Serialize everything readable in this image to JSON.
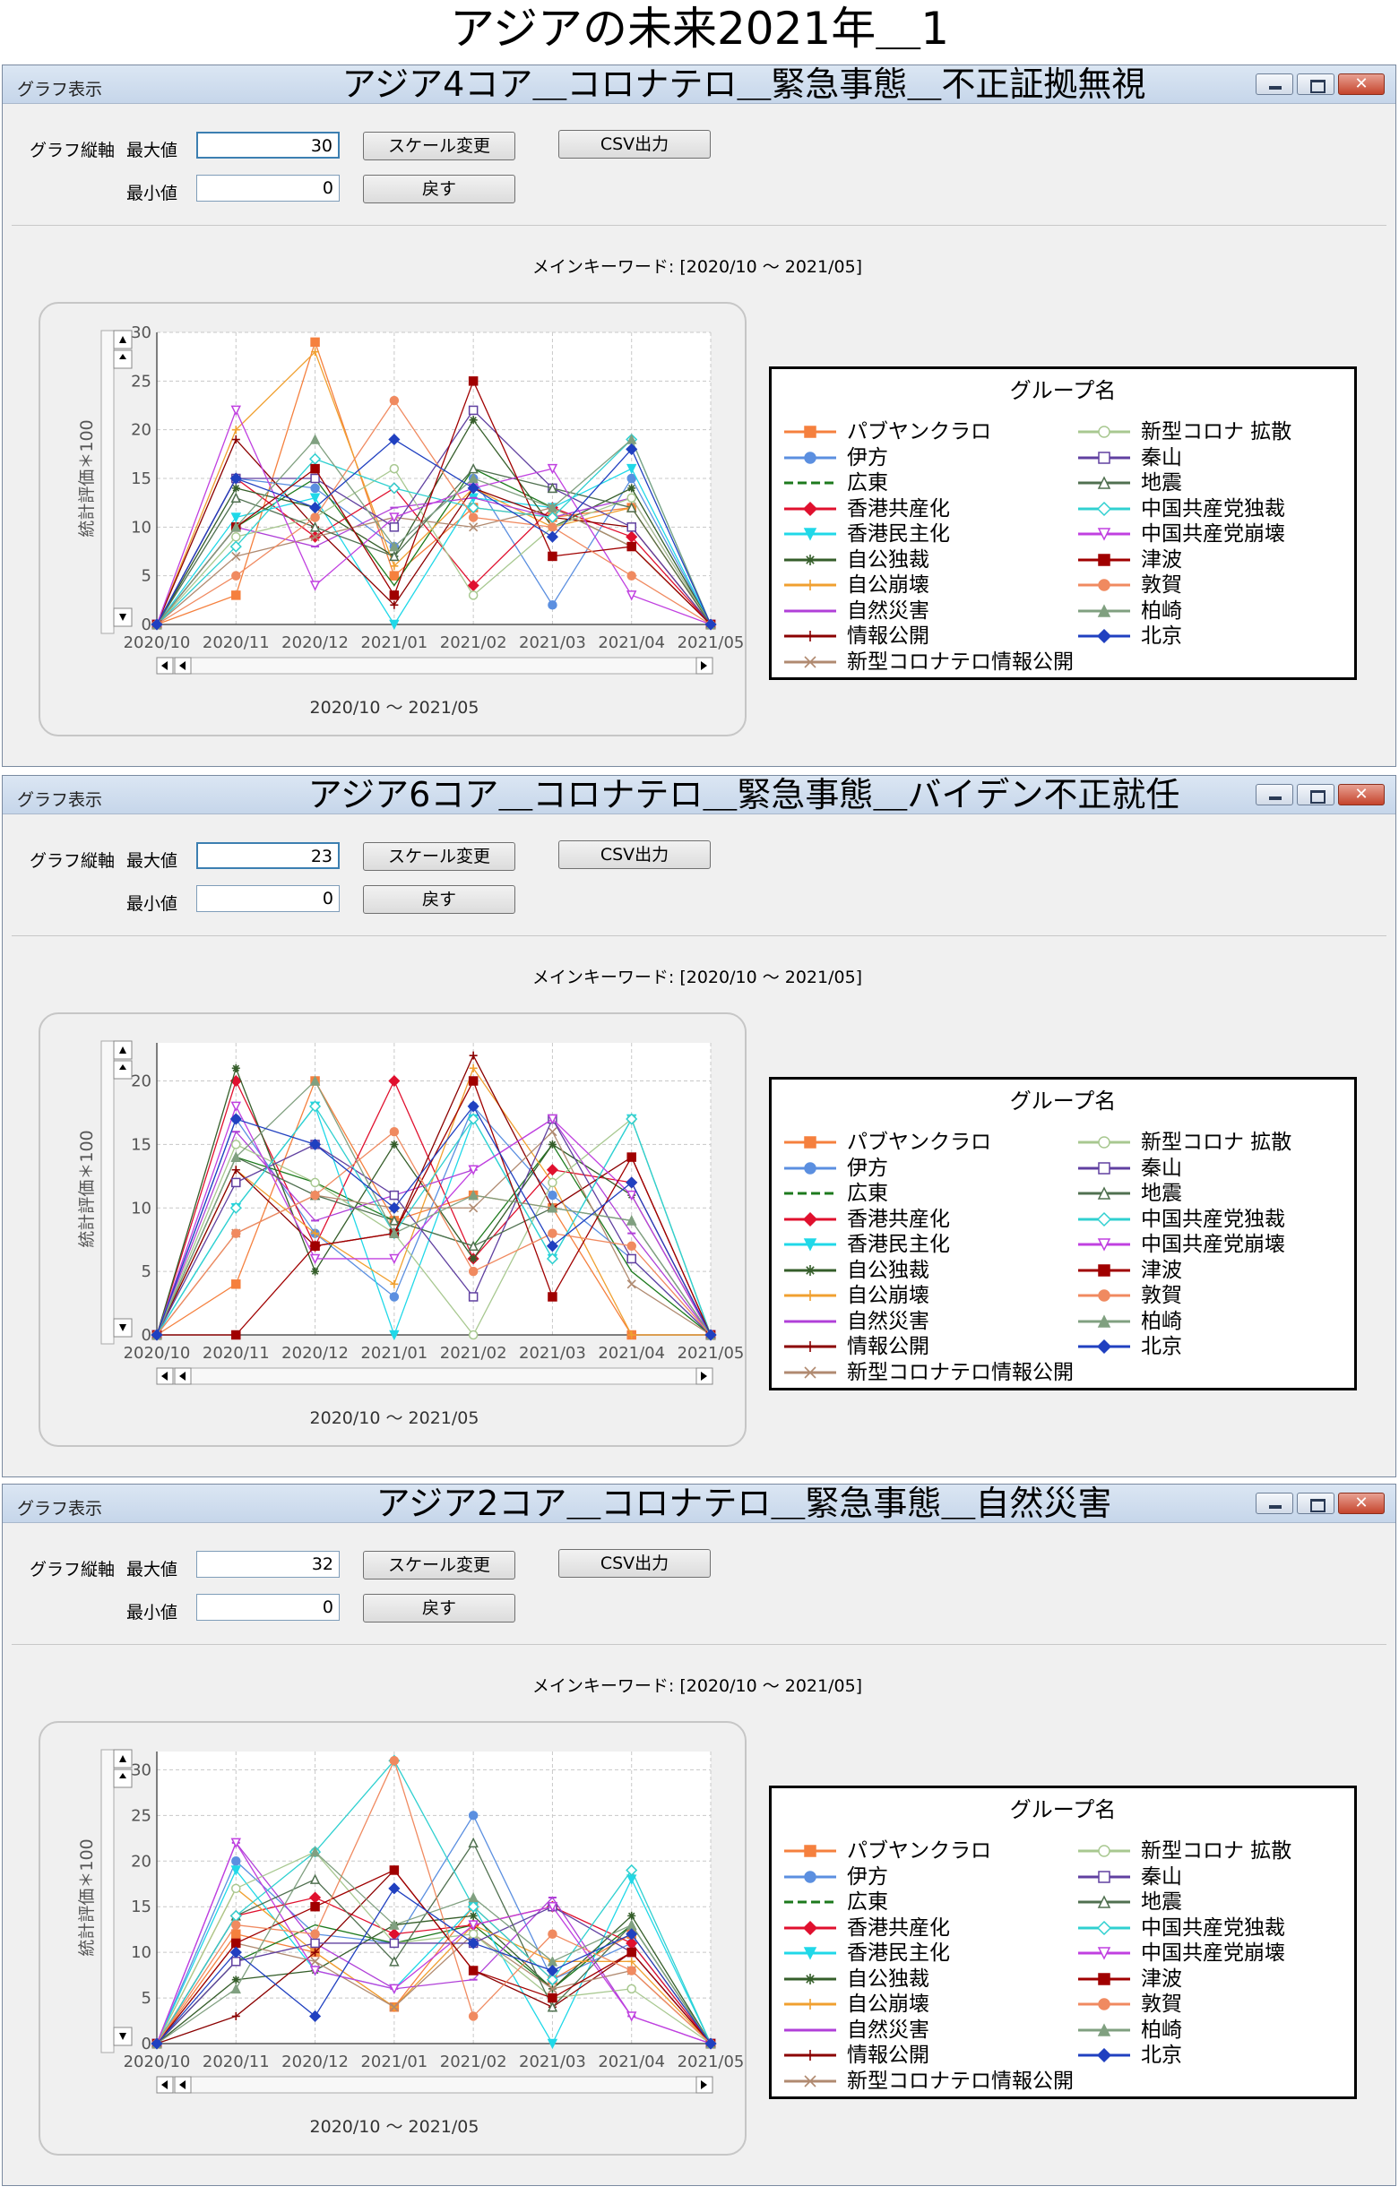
{
  "page_title": "アジアの未来2021年＿1",
  "common": {
    "window_label": "グラフ表示",
    "axis_label": "グラフ縦軸",
    "max_label": "最大値",
    "min_label": "最小値",
    "scale_button": "スケール変更",
    "reset_button": "戻す",
    "csv_button": "CSV出力",
    "keyword_text": "メインキーワード: [2020/10 ～ 2021/05]",
    "legend_title": "グループ名",
    "y_axis_label": "統計評価＊100",
    "x_range_label": "2020/10 ～ 2021/05"
  },
  "windows": [
    {
      "title": "アジア4コア＿コロナテロ＿緊急事態＿不正証拠無視",
      "max_value": "30",
      "min_value": "0"
    },
    {
      "title": "アジア6コア＿コロナテロ＿緊急事態＿バイデン不正就任",
      "max_value": "23",
      "min_value": "0"
    },
    {
      "title": "アジア2コア＿コロナテロ＿緊急事態＿自然災害",
      "max_value": "32",
      "min_value": "0"
    }
  ],
  "colors": {
    "series": [
      "#f5803e",
      "#5b8fe0",
      "#1d7a1d",
      "#e0102e",
      "#20d8e8",
      "#355e2a",
      "#f0a030",
      "#b040d8",
      "#8b0000",
      "#b08a70",
      "#a8c890",
      "#6040a0",
      "#507050",
      "#30d0d0",
      "#c040e0",
      "#a00000",
      "#f08a60",
      "#80a080",
      "#2040c0"
    ]
  },
  "chart_data": [
    {
      "type": "line",
      "x": [
        "2020/10",
        "2020/11",
        "2020/12",
        "2021/01",
        "2021/02",
        "2021/03",
        "2021/04",
        "2021/05"
      ],
      "ylim": [
        0,
        30
      ],
      "yticks": [
        0,
        5,
        10,
        15,
        20,
        25,
        30
      ],
      "ylabel": "統計評価＊100",
      "xlabel": "2020/10 ～ 2021/05",
      "grid": true,
      "legend": "right",
      "series": [
        {
          "name": "パブヤンクラロ",
          "values": [
            0,
            3,
            29,
            5,
            12,
            11,
            12,
            0
          ]
        },
        {
          "name": "伊方",
          "values": [
            0,
            15,
            14,
            8,
            15,
            2,
            15,
            0
          ]
        },
        {
          "name": "広東",
          "values": [
            0,
            10,
            15,
            4,
            16,
            12,
            8,
            0
          ]
        },
        {
          "name": "香港共産化",
          "values": [
            0,
            15,
            9,
            14,
            4,
            12,
            9,
            0
          ]
        },
        {
          "name": "香港民主化",
          "values": [
            0,
            11,
            13,
            0,
            13,
            12,
            16,
            0
          ]
        },
        {
          "name": "自公独裁",
          "values": [
            0,
            14,
            12,
            7,
            21,
            10,
            14,
            0
          ]
        },
        {
          "name": "自公崩壊",
          "values": [
            0,
            20,
            28,
            6,
            14,
            10,
            12,
            0
          ]
        },
        {
          "name": "自然災害",
          "values": [
            0,
            10,
            8,
            12,
            13,
            11,
            13,
            0
          ]
        },
        {
          "name": "情報公開",
          "values": [
            0,
            19,
            10,
            2,
            14,
            11,
            10,
            0
          ]
        },
        {
          "name": "新型コロナテロ情報公開",
          "values": [
            0,
            7,
            9,
            11,
            10,
            12,
            8,
            0
          ]
        },
        {
          "name": "新型コロナ 拡散",
          "values": [
            0,
            9,
            11,
            16,
            3,
            10,
            13,
            0
          ]
        },
        {
          "name": "秦山",
          "values": [
            0,
            15,
            15,
            10,
            22,
            14,
            10,
            0
          ]
        },
        {
          "name": "地震",
          "values": [
            0,
            13,
            10,
            7,
            16,
            14,
            12,
            0
          ]
        },
        {
          "name": "中国共産党独裁",
          "values": [
            0,
            8,
            17,
            14,
            12,
            11,
            19,
            0
          ]
        },
        {
          "name": "中国共産党崩壊",
          "values": [
            0,
            22,
            4,
            11,
            14,
            16,
            3,
            0
          ]
        },
        {
          "name": "津波",
          "values": [
            0,
            10,
            16,
            3,
            25,
            7,
            8,
            0
          ]
        },
        {
          "name": "敦賀",
          "values": [
            0,
            5,
            11,
            23,
            11,
            10,
            5,
            0
          ]
        },
        {
          "name": "柏崎",
          "values": [
            0,
            10,
            19,
            8,
            15,
            12,
            19,
            0
          ]
        },
        {
          "name": "北京",
          "values": [
            0,
            15,
            12,
            19,
            14,
            9,
            18,
            0
          ]
        }
      ]
    },
    {
      "type": "line",
      "x": [
        "2020/10",
        "2020/11",
        "2020/12",
        "2021/01",
        "2021/02",
        "2021/03",
        "2021/04",
        "2021/05"
      ],
      "ylim": [
        0,
        23
      ],
      "yticks": [
        0,
        5,
        10,
        15,
        20
      ],
      "ylabel": "統計評価＊100",
      "xlabel": "2020/10 ～ 2021/05",
      "grid": true,
      "legend": "right",
      "series": [
        {
          "name": "パブヤンクラロ",
          "values": [
            0,
            4,
            20,
            9,
            11,
            10,
            0,
            0
          ]
        },
        {
          "name": "伊方",
          "values": [
            0,
            17,
            8,
            3,
            18,
            11,
            6,
            0
          ]
        },
        {
          "name": "広東",
          "values": [
            0,
            14,
            12,
            9,
            7,
            15,
            5,
            0
          ]
        },
        {
          "name": "香港共産化",
          "values": [
            0,
            20,
            7,
            20,
            6,
            13,
            12,
            0
          ]
        },
        {
          "name": "香港民主化",
          "values": [
            0,
            10,
            18,
            0,
            17,
            6,
            17,
            0
          ]
        },
        {
          "name": "自公独裁",
          "values": [
            0,
            21,
            5,
            15,
            6,
            15,
            11,
            0
          ]
        },
        {
          "name": "自公崩壊",
          "values": [
            0,
            13,
            8,
            4,
            21,
            12,
            0,
            0
          ]
        },
        {
          "name": "自然災害",
          "values": [
            0,
            16,
            9,
            11,
            13,
            17,
            8,
            0
          ]
        },
        {
          "name": "情報公開",
          "values": [
            0,
            13,
            7,
            8,
            22,
            10,
            14,
            0
          ]
        },
        {
          "name": "新型コロナテロ情報公開",
          "values": [
            0,
            8,
            11,
            10,
            10,
            16,
            4,
            0
          ]
        },
        {
          "name": "新型コロナ 拡散",
          "values": [
            0,
            15,
            12,
            8,
            0,
            12,
            17,
            0
          ]
        },
        {
          "name": "秦山",
          "values": [
            0,
            12,
            15,
            11,
            3,
            17,
            6,
            0
          ]
        },
        {
          "name": "地震",
          "values": [
            0,
            14,
            11,
            9,
            7,
            10,
            9,
            0
          ]
        },
        {
          "name": "中国共産党独裁",
          "values": [
            0,
            10,
            18,
            8,
            17,
            6,
            17,
            0
          ]
        },
        {
          "name": "中国共産党崩壊",
          "values": [
            0,
            18,
            6,
            6,
            13,
            17,
            11,
            0
          ]
        },
        {
          "name": "津波",
          "values": [
            0,
            0,
            7,
            8,
            20,
            3,
            14,
            0
          ]
        },
        {
          "name": "敦賀",
          "values": [
            0,
            8,
            11,
            16,
            5,
            8,
            7,
            0
          ]
        },
        {
          "name": "柏崎",
          "values": [
            0,
            14,
            20,
            8,
            11,
            10,
            9,
            0
          ]
        },
        {
          "name": "北京",
          "values": [
            0,
            17,
            15,
            10,
            18,
            7,
            12,
            0
          ]
        }
      ]
    },
    {
      "type": "line",
      "x": [
        "2020/10",
        "2020/11",
        "2020/12",
        "2021/01",
        "2021/02",
        "2021/03",
        "2021/04",
        "2021/05"
      ],
      "ylim": [
        0,
        32
      ],
      "yticks": [
        0,
        5,
        10,
        15,
        20,
        25,
        30
      ],
      "ylabel": "統計評価＊100",
      "xlabel": "2020/10 ～ 2021/05",
      "grid": true,
      "legend": "right",
      "series": [
        {
          "name": "パブヤンクラロ",
          "values": [
            0,
            12,
            10,
            4,
            15,
            7,
            12,
            0
          ]
        },
        {
          "name": "伊方",
          "values": [
            0,
            20,
            12,
            11,
            25,
            7,
            11,
            0
          ]
        },
        {
          "name": "広東",
          "values": [
            0,
            9,
            13,
            11,
            13,
            6,
            13,
            0
          ]
        },
        {
          "name": "香港共産化",
          "values": [
            0,
            14,
            16,
            12,
            13,
            15,
            11,
            0
          ]
        },
        {
          "name": "香港民主化",
          "values": [
            0,
            19,
            8,
            6,
            15,
            0,
            18,
            0
          ]
        },
        {
          "name": "自公独裁",
          "values": [
            0,
            7,
            8,
            13,
            14,
            6,
            14,
            0
          ]
        },
        {
          "name": "自公崩壊",
          "values": [
            0,
            17,
            10,
            4,
            13,
            9,
            9,
            0
          ]
        },
        {
          "name": "自然災害",
          "values": [
            0,
            22,
            11,
            6,
            7,
            16,
            3,
            0
          ]
        },
        {
          "name": "情報公開",
          "values": [
            0,
            3,
            10,
            19,
            8,
            4,
            10,
            0
          ]
        },
        {
          "name": "新型コロナテロ情報公開",
          "values": [
            0,
            11,
            9,
            4,
            12,
            6,
            8,
            0
          ]
        },
        {
          "name": "新型コロナ 拡散",
          "values": [
            0,
            17,
            21,
            11,
            12,
            5,
            6,
            0
          ]
        },
        {
          "name": "秦山",
          "values": [
            0,
            9,
            11,
            11,
            11,
            15,
            10,
            0
          ]
        },
        {
          "name": "地震",
          "values": [
            0,
            14,
            18,
            9,
            22,
            4,
            13,
            0
          ]
        },
        {
          "name": "中国共産党独裁",
          "values": [
            0,
            14,
            21,
            31,
            15,
            7,
            19,
            0
          ]
        },
        {
          "name": "中国共産党崩壊",
          "values": [
            0,
            22,
            8,
            6,
            13,
            15,
            3,
            0
          ]
        },
        {
          "name": "津波",
          "values": [
            0,
            11,
            15,
            19,
            8,
            5,
            10,
            0
          ]
        },
        {
          "name": "敦賀",
          "values": [
            0,
            13,
            12,
            31,
            3,
            12,
            8,
            0
          ]
        },
        {
          "name": "柏崎",
          "values": [
            0,
            6,
            21,
            13,
            16,
            9,
            13,
            0
          ]
        },
        {
          "name": "北京",
          "values": [
            0,
            10,
            3,
            17,
            11,
            8,
            12,
            0
          ]
        }
      ]
    }
  ]
}
